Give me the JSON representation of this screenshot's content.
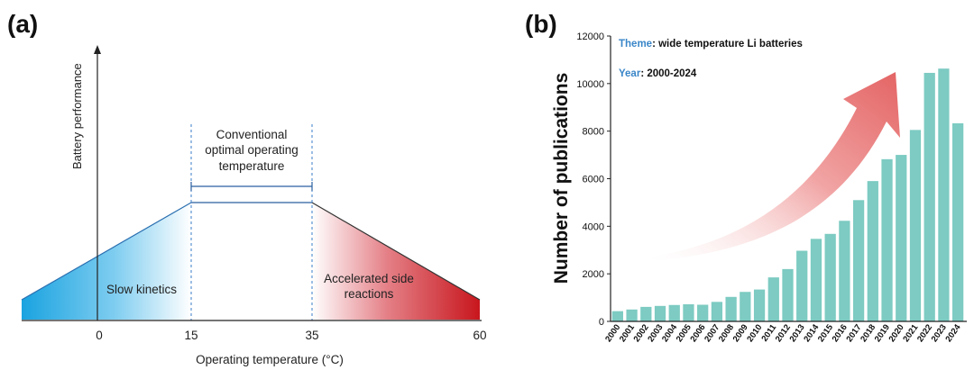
{
  "panel_a": {
    "label": "(a)",
    "y_axis_label": "Battery performance",
    "x_axis_label": "Operating temperature (°C)",
    "x_ticks": [
      "0",
      "15",
      "35",
      "60"
    ],
    "region_center": [
      "Conventional",
      "optimal operating",
      "temperature"
    ],
    "region_left": "Slow kinetics",
    "region_right": [
      "Accelerated side",
      "reactions"
    ],
    "colors": {
      "cold": "#1aa3e0",
      "hot": "#c8161d"
    }
  },
  "panel_b": {
    "label": "(b)",
    "theme_key": "Theme",
    "theme_value": ": wide temperature  Li batteries",
    "year_key": "Year",
    "year_value": ": 2000-2024",
    "accent_text_color": "#3a86c8",
    "arrow_color": "#e46464"
  },
  "chart_data": [
    {
      "type": "area",
      "title": "",
      "xlabel": "Operating temperature (°C)",
      "ylabel": "Battery performance",
      "x": [
        -17,
        15,
        35,
        60
      ],
      "y": [
        0.22,
        1.0,
        1.0,
        0.22
      ],
      "x_ticks": [
        0,
        15,
        35,
        60
      ],
      "optimal_range": [
        15,
        35
      ],
      "regions": [
        {
          "name": "Slow kinetics",
          "range": [
            -17,
            15
          ]
        },
        {
          "name": "Conventional optimal operating temperature",
          "range": [
            15,
            35
          ]
        },
        {
          "name": "Accelerated side reactions",
          "range": [
            35,
            60
          ]
        }
      ],
      "grid": false
    },
    {
      "type": "bar",
      "title": "",
      "xlabel": "",
      "ylabel": "Number of publications",
      "categories": [
        "2000",
        "2001",
        "2002",
        "2003",
        "2004",
        "2005",
        "2006",
        "2007",
        "2008",
        "2009",
        "2010",
        "2011",
        "2012",
        "2013",
        "2014",
        "2015",
        "2016",
        "2017",
        "2018",
        "2019",
        "2020",
        "2021",
        "2022",
        "2023",
        "2024"
      ],
      "values": [
        430,
        500,
        610,
        650,
        690,
        720,
        700,
        820,
        1030,
        1240,
        1340,
        1850,
        2200,
        2970,
        3470,
        3680,
        4230,
        5100,
        5900,
        6820,
        7000,
        8050,
        10450,
        10630,
        8330
      ],
      "ylim": [
        0,
        12000
      ],
      "yticks": [
        0,
        2000,
        4000,
        6000,
        8000,
        10000,
        12000
      ],
      "bar_color": "#7dcbc2",
      "grid": false
    }
  ]
}
